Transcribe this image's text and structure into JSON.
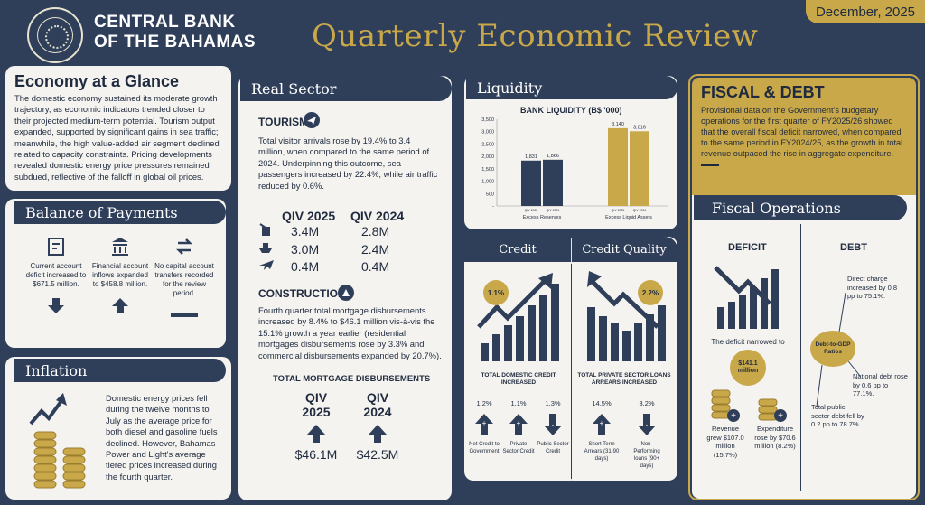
{
  "header": {
    "bank_line1": "CENTRAL BANK",
    "bank_line2": "OF THE BAHAMAS",
    "seal_text": "CENTRAL BANK OF THE BAHAMAS",
    "title": "Quarterly Economic Review",
    "date": "December, 2025"
  },
  "glance": {
    "title": "Economy at a Glance",
    "body": "The domestic economy sustained its moderate growth trajectory, as economic indicators trended closer to their projected medium-term potential. Tourism output expanded, supported by significant gains in sea traffic; meanwhile, the high value-added air segment declined related to capacity constraints. Pricing developments revealed domestic energy price pressures remained subdued, reflective of the falloff in global oil prices."
  },
  "bop": {
    "title": "Balance of Payments",
    "items": [
      {
        "text": "Current account deficit increased to $671.5 million.",
        "icon": "invoice-icon",
        "direction": "down"
      },
      {
        "text": "Financial account inflows expanded to $458.8 million.",
        "icon": "bank-icon",
        "direction": "up"
      },
      {
        "text": "No capital account transfers recorded for the review period.",
        "icon": "exchange-icon",
        "direction": "flat"
      }
    ]
  },
  "inflation": {
    "title": "Inflation",
    "body": "Domestic energy prices fell during the twelve months to July as the average price for both diesel and gasoline fuels declined. However, Bahamas Power and Light's average tiered prices increased during the fourth quarter."
  },
  "real": {
    "title": "Real Sector",
    "tourism_title": "TOURISM",
    "tourism_body": "Total visitor arrivals rose by 19.4% to 3.4 million, when compared to the same period of 2024. Underpinning this outcome, sea passengers increased by 22.4%, while air traffic reduced by 0.6%.",
    "col1": "QIV 2025",
    "col2": "QIV 2024",
    "rows": [
      {
        "icon": "luggage-icon",
        "v1": "3.4M",
        "v2": "2.8M"
      },
      {
        "icon": "cruise-ship-icon",
        "v1": "3.0M",
        "v2": "2.4M"
      },
      {
        "icon": "airplane-icon",
        "v1": "0.4M",
        "v2": "0.4M"
      }
    ],
    "construction_title": "CONSTRUCTION",
    "construction_body": "Fourth quarter total mortgage disbursements increased by 8.4% to $46.1 million vis-à-vis the 15.1% growth a year earlier (residential mortgages disbursements rose by 3.3% and commercial disbursements expanded by 20.7%).",
    "mortgage_title": "TOTAL MORTGAGE DISBURSEMENTS",
    "m_col1a": "QIV",
    "m_col1b": "2025",
    "m_val1": "$46.1M",
    "m_col2a": "QIV",
    "m_col2b": "2024",
    "m_val2": "$42.5M"
  },
  "liquidity": {
    "title": "Liquidity",
    "chart_data": {
      "type": "bar",
      "title": "BANK LIQUIDITY (B$ '000)",
      "categories": [
        "Excess Reserves",
        "Excess Liquid Assets"
      ],
      "series": [
        {
          "name": "QIV 2025",
          "values": [
            1831,
            3140
          ]
        },
        {
          "name": "QIV 2024",
          "values": [
            1866,
            3016
          ]
        }
      ],
      "bar_labels": [
        "QIV 2025",
        "QIV 2024",
        "QIV 2025",
        "QIV 2024"
      ],
      "value_labels": [
        "1,831",
        "1,866",
        "3,140",
        "3,016"
      ],
      "yticks": [
        "3,500",
        "3,000",
        "2,500",
        "2,000",
        "1,500",
        "1,000",
        "500",
        "-"
      ],
      "ylim": [
        0,
        3500
      ]
    }
  },
  "credit": {
    "title": "Credit",
    "pct": "1.1%",
    "caption": "TOTAL DOMESTIC CREDIT INCREASED",
    "items": [
      {
        "pct": "1.2%",
        "label": "Net Credit to Government",
        "dir": "up"
      },
      {
        "pct": "1.1%",
        "label": "Private Sector Credit",
        "dir": "up"
      },
      {
        "pct": "1.3%",
        "label": "Public Sector Credit",
        "dir": "down"
      }
    ]
  },
  "quality": {
    "title": "Credit Quality",
    "pct": "2.2%",
    "caption": "TOTAL PRIVATE SECTOR LOANS ARREARS INCREASED",
    "items": [
      {
        "pct": "14.5%",
        "label": "Short Term Arrears (31-90 days)",
        "dir": "up"
      },
      {
        "pct": "3.2%",
        "label": "Non-Performing loans (90+ days)",
        "dir": "down"
      }
    ]
  },
  "fiscal": {
    "title": "FISCAL & DEBT",
    "body": "Provisional data on the Government's budgetary operations for the first quarter of FY2025/26 showed that the overall fiscal deficit narrowed, when compared to the same period in FY2024/25, as the growth in total revenue outpaced the rise in aggregate expenditure.",
    "ops_title": "Fiscal Operations",
    "deficit_title": "DEFICIT",
    "deficit_text": "The deficit narrowed to",
    "deficit_value": "$141.1 million",
    "revenue": "Revenue grew $107.0 million (15.7%)",
    "expenditure": "Expenditure rose by $70.6 million (8.2%)",
    "debt_title": "DEBT",
    "debt_center": "Debt-to-GDP Ratios",
    "debt_direct": "Direct charge increased by 0.8 pp to 75.1%.",
    "debt_national": "National debt rose by 0.6 pp to 77.1%.",
    "debt_public": "Total public sector debt fell by 0.2 pp to 78.7%."
  }
}
